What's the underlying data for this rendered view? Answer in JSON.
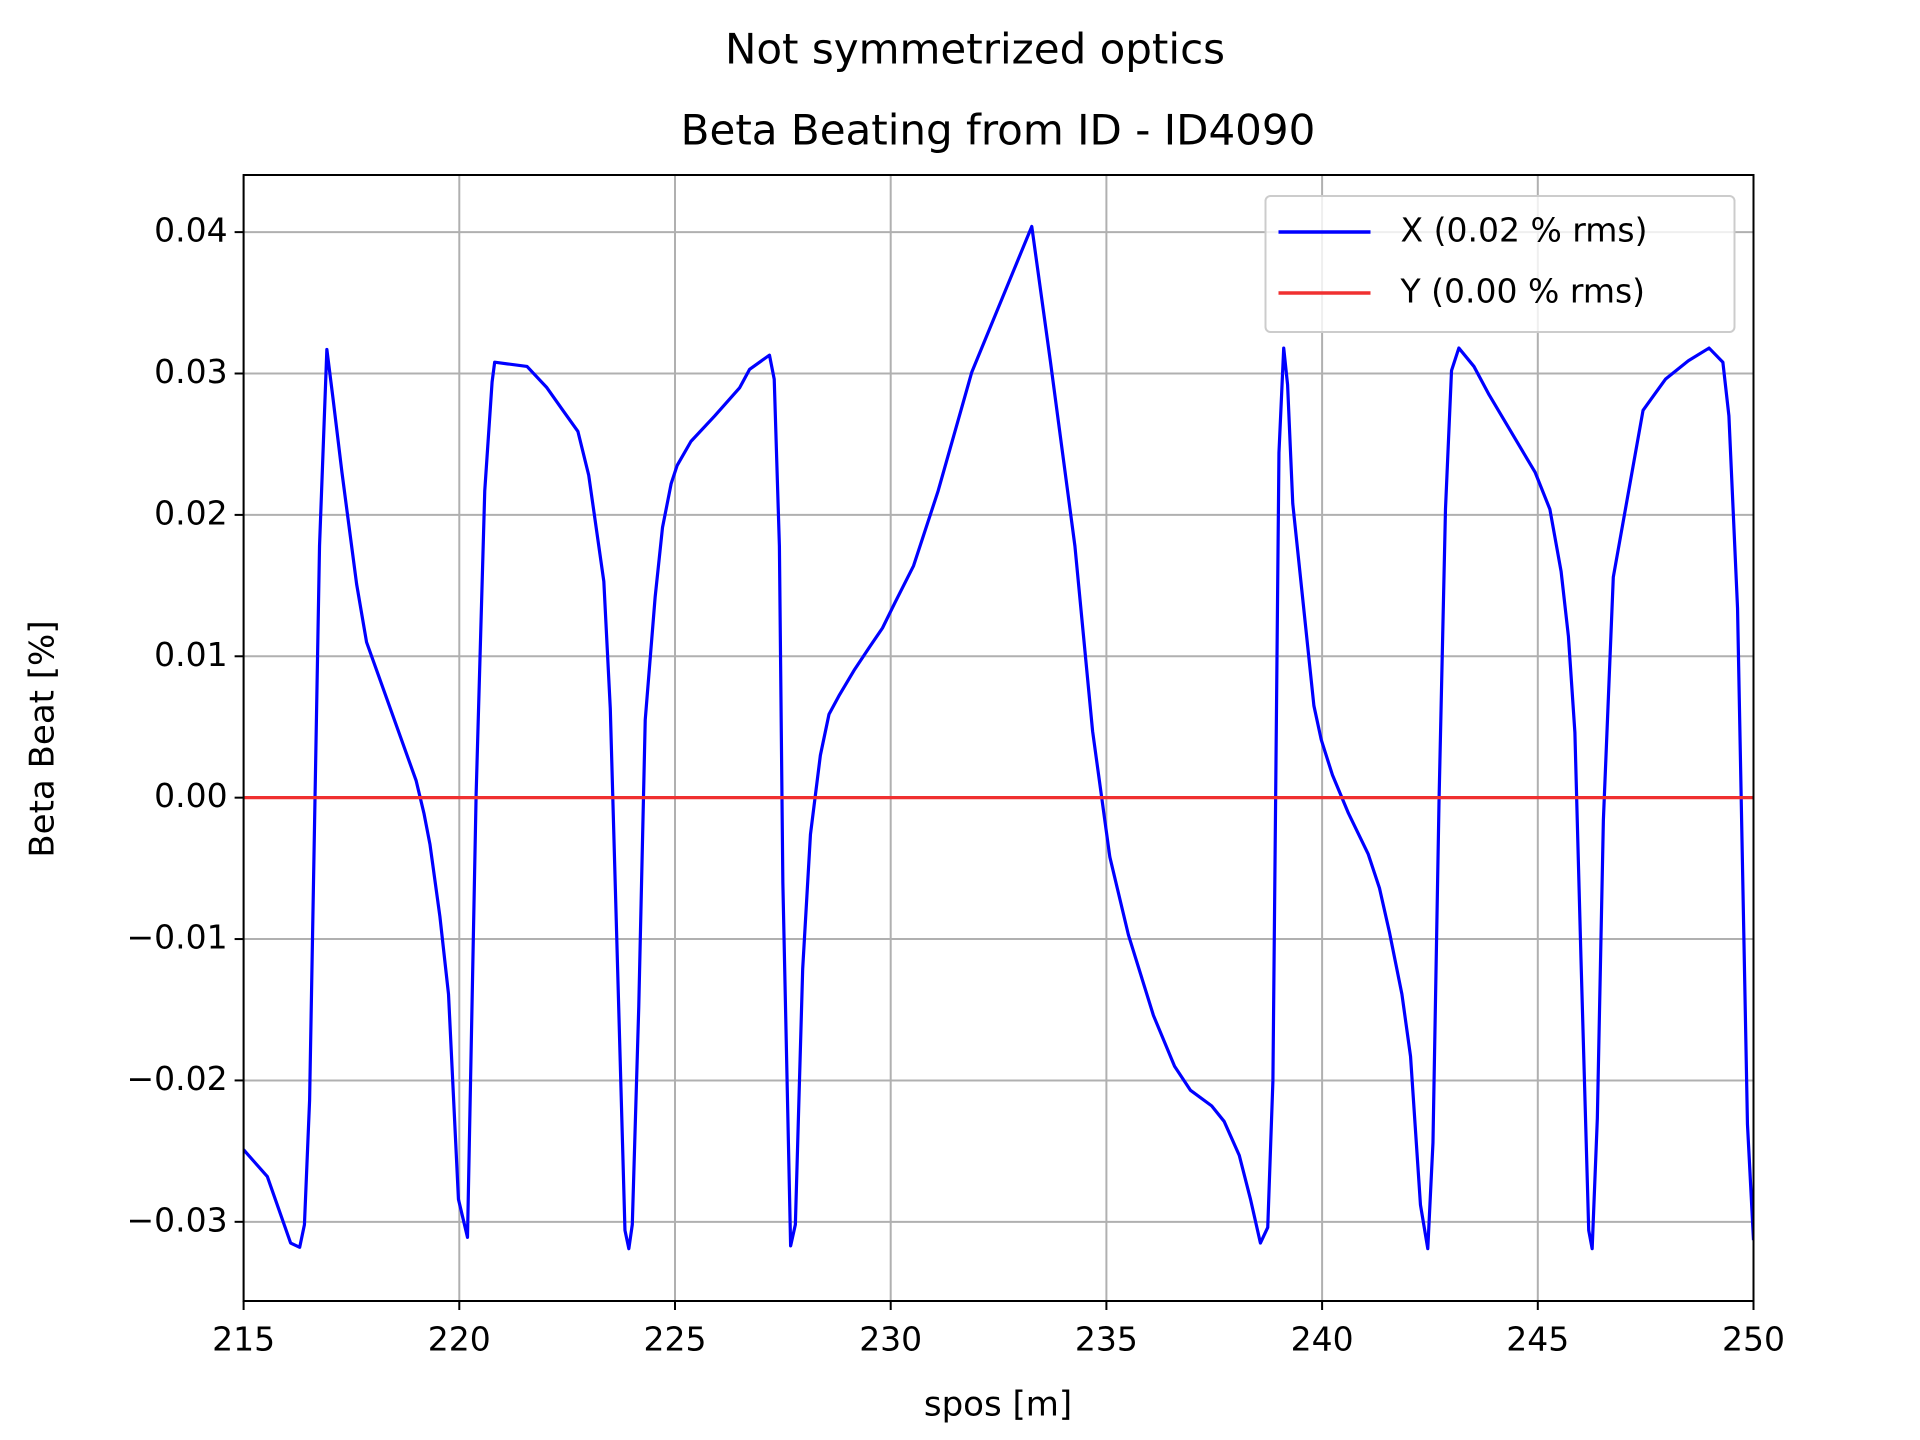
{
  "chart_data": {
    "type": "line",
    "title": "Not symmetrized optics",
    "subtitle": "Beta Beating from ID - ID4090",
    "xlabel": "spos [m]",
    "ylabel": "Beta Beat [%]",
    "xlim": [
      215,
      250
    ],
    "ylim": [
      -0.0356,
      0.04404
    ],
    "xticks": [
      215,
      220,
      225,
      230,
      235,
      240,
      245,
      250
    ],
    "yticks": [
      {
        "value": -0.03,
        "label": "−0.03"
      },
      {
        "value": -0.02,
        "label": "−0.02"
      },
      {
        "value": -0.01,
        "label": "−0.01"
      },
      {
        "value": 0,
        "label": "0.00"
      },
      0.01,
      0.02,
      0.03,
      0.04
    ],
    "grid": true,
    "legend": "upper right",
    "series": [
      {
        "name": "X (0.02 % rms)",
        "color": "#0000ff",
        "x": [
          215,
          215.55,
          216.09,
          216.3,
          216.41,
          216.53,
          216.76,
          216.93,
          217.07,
          217.28,
          217.62,
          217.85,
          219.0,
          219.18,
          219.32,
          219.55,
          219.75,
          219.98,
          220.19,
          220.39,
          220.59,
          220.76,
          220.82,
          221.57,
          222.03,
          222.4,
          222.75,
          223.0,
          223.35,
          223.5,
          223.67,
          223.84,
          223.93,
          224.01,
          224.16,
          224.31,
          224.54,
          224.71,
          224.91,
          225.05,
          225.37,
          225.92,
          226.5,
          226.73,
          227.19,
          227.3,
          227.42,
          227.5,
          227.68,
          227.79,
          227.96,
          228.14,
          228.37,
          228.57,
          228.8,
          229.15,
          229.52,
          229.81,
          230.1,
          230.53,
          231.1,
          231.88,
          233.27,
          233.7,
          234.27,
          234.68,
          235.08,
          235.51,
          236.09,
          236.58,
          236.95,
          237.44,
          237.73,
          238.08,
          238.34,
          238.57,
          238.74,
          238.86,
          239.0,
          239.11,
          239.2,
          239.32,
          239.81,
          239.98,
          240.24,
          240.61,
          241.07,
          241.33,
          241.56,
          241.85,
          242.05,
          242.28,
          242.45,
          242.57,
          242.71,
          242.86,
          243.0,
          243.17,
          243.52,
          243.87,
          244.94,
          245.28,
          245.54,
          245.71,
          245.86,
          246.0,
          246.18,
          246.26,
          246.38,
          246.52,
          246.75,
          247.44,
          247.96,
          248.49,
          248.97,
          249.29,
          249.43,
          249.63,
          249.86,
          250
        ],
        "values": [
          -0.0249,
          -0.0268,
          -0.0315,
          -0.0318,
          -0.0302,
          -0.0214,
          0.0178,
          0.0317,
          0.0283,
          0.023,
          0.0151,
          0.011,
          0.0012,
          -0.0011,
          -0.0033,
          -0.0084,
          -0.0139,
          -0.0284,
          -0.0311,
          0.0002,
          0.0217,
          0.0294,
          0.0308,
          0.0305,
          0.029,
          0.0274,
          0.0259,
          0.0228,
          0.0153,
          0.0063,
          -0.0121,
          -0.0306,
          -0.0319,
          -0.0302,
          -0.0148,
          0.0055,
          0.0142,
          0.0191,
          0.0222,
          0.0235,
          0.0252,
          0.027,
          0.029,
          0.0303,
          0.0313,
          0.0296,
          0.0178,
          -0.006,
          -0.0317,
          -0.0302,
          -0.0121,
          -0.0026,
          0.003,
          0.0059,
          0.0072,
          0.009,
          0.0107,
          0.012,
          0.0138,
          0.0164,
          0.0217,
          0.0301,
          0.0404,
          0.0309,
          0.0178,
          0.0047,
          -0.0042,
          -0.0097,
          -0.0154,
          -0.019,
          -0.0207,
          -0.0218,
          -0.0229,
          -0.0253,
          -0.0284,
          -0.0315,
          -0.0304,
          -0.02,
          0.0244,
          0.0318,
          0.0292,
          0.0208,
          0.0065,
          0.0041,
          0.0016,
          -0.0011,
          -0.004,
          -0.0064,
          -0.0095,
          -0.0139,
          -0.0183,
          -0.0288,
          -0.0319,
          -0.0244,
          -0.0003,
          0.0204,
          0.0302,
          0.0318,
          0.0305,
          0.0285,
          0.023,
          0.0204,
          0.016,
          0.0114,
          0.0046,
          -0.0113,
          -0.0306,
          -0.0319,
          -0.0227,
          -0.0016,
          0.0156,
          0.0274,
          0.0296,
          0.0309,
          0.0318,
          0.0308,
          0.027,
          0.0134,
          -0.0231,
          -0.0313
        ]
      },
      {
        "name": "Y (0.00 % rms)",
        "color": "#f03030",
        "x": [
          215,
          250
        ],
        "values": [
          0,
          0
        ]
      }
    ]
  }
}
